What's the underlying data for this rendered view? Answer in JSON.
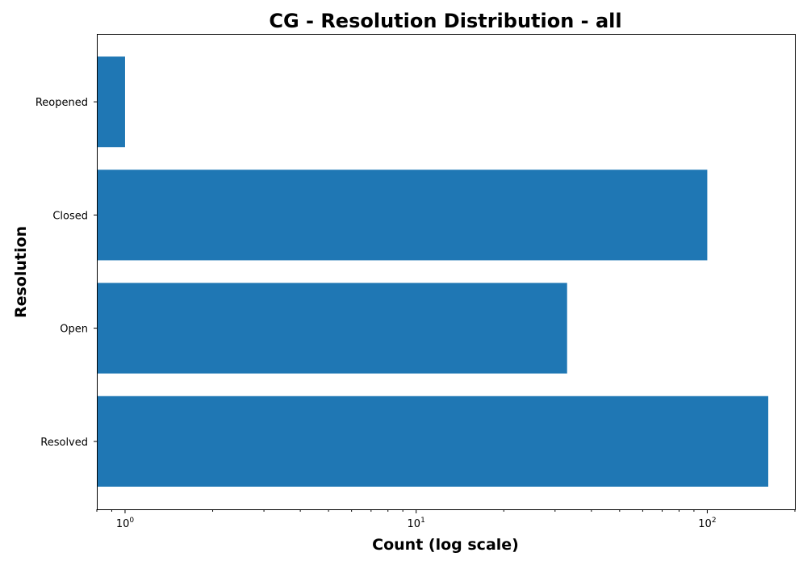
{
  "chart_data": {
    "type": "bar",
    "orientation": "horizontal",
    "title": "CG - Resolution Distribution - all",
    "xlabel": "Count (log scale)",
    "ylabel": "Resolution",
    "x_scale": "log",
    "xlim": [
      0.8,
      200
    ],
    "categories": [
      "Resolved",
      "Open",
      "Closed",
      "Reopened"
    ],
    "values": [
      162,
      33,
      100,
      1
    ],
    "x_ticks": [
      {
        "value": 1,
        "base": "10",
        "exp": "0"
      },
      {
        "value": 10,
        "base": "10",
        "exp": "1"
      },
      {
        "value": 100,
        "base": "10",
        "exp": "2"
      }
    ],
    "bar_color": "#1f77b4",
    "grid": false,
    "legend": "none"
  }
}
